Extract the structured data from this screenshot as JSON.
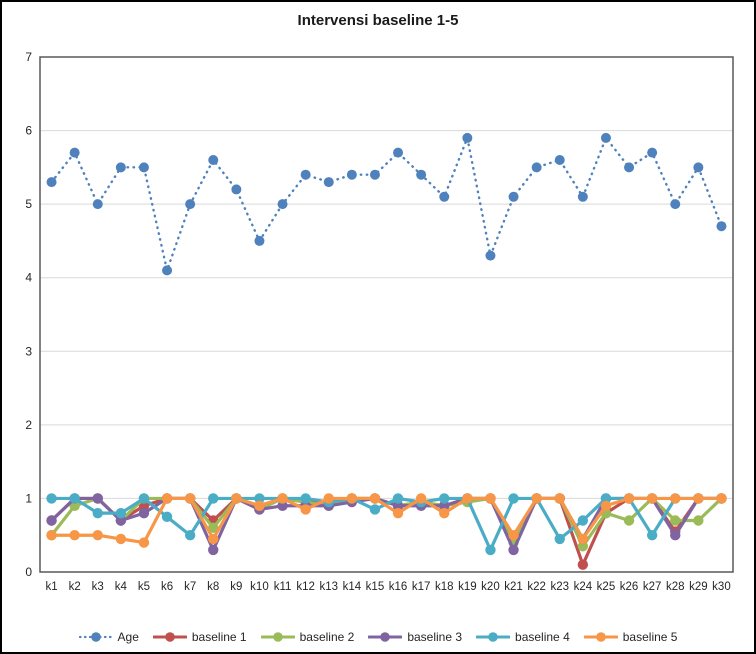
{
  "title": "Intervensi baseline 1-5",
  "axes": {
    "y_tick_labels": [
      "0",
      "1",
      "2",
      "3",
      "4",
      "5",
      "6",
      "7"
    ],
    "x_tick_labels": [
      "k1",
      "k2",
      "k3",
      "k4",
      "k5",
      "k6",
      "k7",
      "k8",
      "k9",
      "k10",
      "k11",
      "k12",
      "k13",
      "k14",
      "k15",
      "k16",
      "k17",
      "k18",
      "k19",
      "k20",
      "k21",
      "k22",
      "k23",
      "k24",
      "k25",
      "k26",
      "k27",
      "k28",
      "k29",
      "k30"
    ]
  },
  "colors": {
    "background": "#FFFFFF",
    "outer_border": "#000000",
    "plot_border": "#595959",
    "gridline": "#D9D9D9",
    "axis_text": "#262626",
    "age_blue": "#4F81BD",
    "baseline1_red": "#C0504D",
    "baseline2_green": "#9BBB59",
    "baseline3_purple": "#8064A2",
    "baseline4_cyan": "#4BACC6",
    "baseline5_orange": "#F79646"
  },
  "chart_data": {
    "type": "line",
    "title": "Intervensi baseline 1-5",
    "xlabel": "",
    "ylabel": "",
    "ylim": [
      0,
      7
    ],
    "yticks": [
      0,
      1,
      2,
      3,
      4,
      5,
      6,
      7
    ],
    "grid": true,
    "legend_position": "bottom",
    "categories": [
      "k1",
      "k2",
      "k3",
      "k4",
      "k5",
      "k6",
      "k7",
      "k8",
      "k9",
      "k10",
      "k11",
      "k12",
      "k13",
      "k14",
      "k15",
      "k16",
      "k17",
      "k18",
      "k19",
      "k20",
      "k21",
      "k22",
      "k23",
      "k24",
      "k25",
      "k26",
      "k27",
      "k28",
      "k29",
      "k30"
    ],
    "series": [
      {
        "name": "Age",
        "color": "#4F81BD",
        "style": "dotted",
        "values": [
          5.3,
          5.7,
          5.0,
          5.5,
          5.5,
          4.1,
          5.0,
          5.6,
          5.2,
          4.5,
          5.0,
          5.4,
          5.3,
          5.4,
          5.4,
          5.7,
          5.4,
          5.1,
          5.9,
          4.3,
          5.1,
          5.5,
          5.6,
          5.1,
          5.9,
          5.5,
          5.7,
          5.0,
          5.5,
          4.7
        ]
      },
      {
        "name": "baseline 1",
        "color": "#C0504D",
        "style": "solid",
        "values": [
          0.7,
          1,
          1,
          0.7,
          0.9,
          1,
          1,
          0.7,
          1,
          0.9,
          1,
          0.95,
          0.95,
          1,
          1,
          0.9,
          0.95,
          0.9,
          1,
          1,
          0.45,
          1,
          1,
          0.1,
          0.8,
          1,
          1,
          0.55,
          1,
          1
        ]
      },
      {
        "name": "baseline 2",
        "color": "#9BBB59",
        "style": "solid",
        "values": [
          0.5,
          0.9,
          1,
          0.7,
          1,
          1,
          1,
          0.6,
          1,
          0.85,
          1,
          0.95,
          0.9,
          1,
          1,
          0.9,
          0.95,
          0.9,
          0.95,
          1,
          0.4,
          1,
          1,
          0.35,
          0.8,
          0.7,
          1,
          0.7,
          0.7,
          1
        ]
      },
      {
        "name": "baseline 3",
        "color": "#8064A2",
        "style": "solid",
        "values": [
          0.7,
          1,
          1,
          0.7,
          0.8,
          1,
          1,
          0.3,
          1,
          0.85,
          0.9,
          0.9,
          0.9,
          0.95,
          1,
          0.9,
          0.9,
          0.9,
          1,
          1,
          0.3,
          1,
          1,
          0.45,
          1,
          1,
          1,
          0.5,
          1,
          1
        ]
      },
      {
        "name": "baseline 4",
        "color": "#4BACC6",
        "style": "solid",
        "values": [
          1,
          1,
          0.8,
          0.8,
          1,
          0.75,
          0.5,
          1,
          1,
          1,
          1,
          1,
          0.95,
          1,
          0.85,
          1,
          0.95,
          1,
          1,
          0.3,
          1,
          1,
          0.45,
          0.7,
          1,
          1,
          0.5,
          1,
          1,
          1
        ]
      },
      {
        "name": "baseline 5",
        "color": "#F79646",
        "style": "solid",
        "values": [
          0.5,
          0.5,
          0.5,
          0.45,
          0.4,
          1,
          1,
          0.45,
          1,
          0.9,
          1,
          0.85,
          1,
          1,
          1,
          0.8,
          1,
          0.8,
          1,
          1,
          0.5,
          1,
          1,
          0.45,
          0.9,
          1,
          1,
          1,
          1,
          1
        ]
      }
    ]
  }
}
